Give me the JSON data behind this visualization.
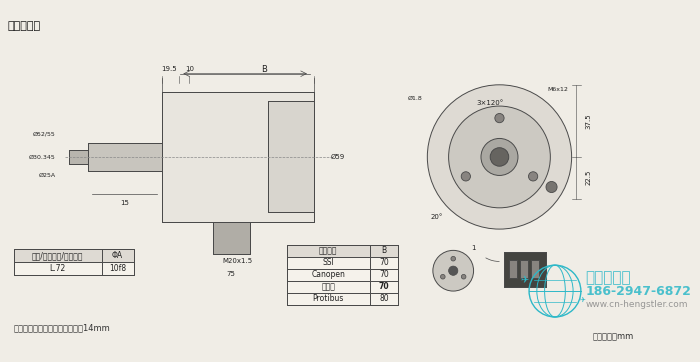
{
  "title": "连接：径向",
  "bg_color": "#f0ede6",
  "line_color": "#4a4a4a",
  "table1_headers": [
    "安装/防护等级/轴－代码",
    "ΦA"
  ],
  "table1_row": [
    "L.72",
    "10f8"
  ],
  "table2_headers": [
    "电气接口",
    "B"
  ],
  "table2_rows": [
    [
      "SSI",
      "70"
    ],
    [
      "Canopen",
      "70"
    ],
    [
      "模拟量",
      "70"
    ],
    [
      "Protibus",
      "80"
    ]
  ],
  "table2_bold_row": 2,
  "footnote": "推荐的电缆密封管的螺纹长度：14mm",
  "unit_note": "单位尺寸：mm",
  "watermark_line1": "西安德伍拓",
  "watermark_line2": "186-2947-6872",
  "watermark_line3": "www.cn-hengstler.com",
  "watermark_color": "#2db8c8",
  "watermark_color2": "#c8a050"
}
